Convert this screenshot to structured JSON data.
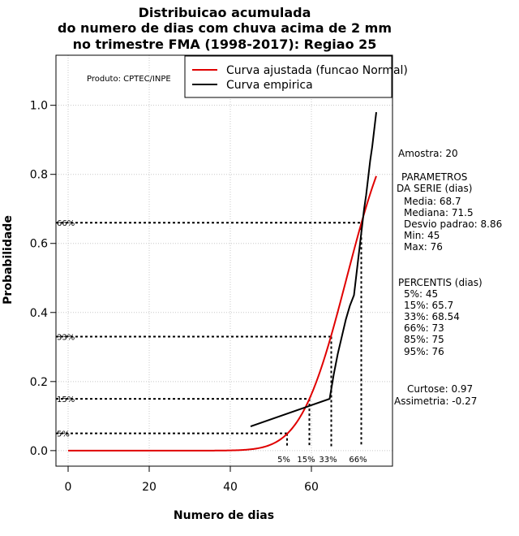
{
  "chart_data": {
    "type": "line",
    "title": [
      "Distribuicao acumulada",
      "do numero de dias com chuva acima de 2 mm",
      "no trimestre FMA (1998-2017): Regiao 25"
    ],
    "xlabel": "Numero de dias",
    "ylabel": "Probabilidade",
    "xlim": [
      -3,
      80
    ],
    "ylim": [
      -0.045,
      1.145
    ],
    "x_ticks": [
      0,
      20,
      40,
      60
    ],
    "y_ticks": [
      0.0,
      0.2,
      0.4,
      0.6,
      0.8,
      1.0
    ],
    "x_tick_labels": [
      "0",
      "20",
      "40",
      "60"
    ],
    "y_tick_labels": [
      "0.0",
      "0.2",
      "0.4",
      "0.6",
      "0.8",
      "1.0"
    ],
    "grid": true,
    "credit": "Produto: CPTEC/INPE",
    "legend": {
      "position": "top-right",
      "entries": [
        {
          "label": "Curva ajustada (funcao Normal)",
          "color": "#e00000"
        },
        {
          "label": "Curva empirica",
          "color": "#000000"
        }
      ]
    },
    "series": [
      {
        "name": "Curva ajustada (funcao Normal)",
        "color": "#e00000",
        "kind": "normal_cdf",
        "mean": 68.7,
        "sd": 8.86,
        "x_from": 0,
        "x_to": 76
      },
      {
        "name": "Curva empirica",
        "color": "#000000",
        "x": [
          45,
          64.5,
          65.5,
          66.5,
          67.5,
          68.5,
          69.5,
          70.5,
          71,
          71.5,
          72,
          72.5,
          73,
          73.5,
          74,
          74.5,
          75,
          75.5,
          76
        ],
        "y": [
          0.07,
          0.15,
          0.22,
          0.28,
          0.33,
          0.38,
          0.42,
          0.45,
          0.5,
          0.55,
          0.6,
          0.65,
          0.7,
          0.74,
          0.79,
          0.84,
          0.88,
          0.93,
          0.98
        ]
      }
    ],
    "percentile_markers": [
      {
        "label": "5%",
        "prob": 0.05,
        "x": 54
      },
      {
        "label": "15%",
        "prob": 0.15,
        "x": 59.5
      },
      {
        "label": "33%",
        "prob": 0.33,
        "x": 64.9
      },
      {
        "label": "66%",
        "prob": 0.66,
        "x": 72.3
      }
    ],
    "side_panel": {
      "sample": "Amostra: 20",
      "params_title_1": "PARAMETROS",
      "params_title_2": "DA SERIE (dias)",
      "params": [
        "Media: 68.7",
        "Mediana: 71.5",
        "Desvio padrao: 8.86",
        "Min: 45",
        "Max: 76"
      ],
      "percentis_title": "PERCENTIS (dias)",
      "percentis": [
        "5%: 45",
        "15%: 65.7",
        "33%: 68.54",
        "66%: 73",
        "85%: 75",
        "95%: 76"
      ],
      "curtose": "Curtose: 0.97",
      "assimetria": "Assimetria: -0.27"
    }
  }
}
